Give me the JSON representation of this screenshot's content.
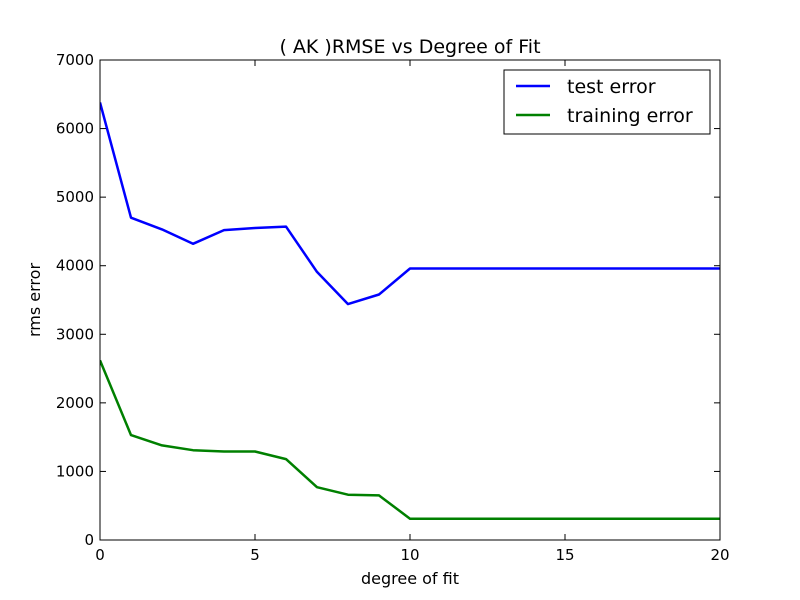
{
  "chart_data": {
    "type": "line",
    "title": "(  AK  )RMSE vs Degree of Fit",
    "xlabel": "degree of fit",
    "ylabel": "rms error",
    "xlim": [
      0,
      20
    ],
    "ylim": [
      0,
      7000
    ],
    "x_ticks": [
      0,
      5,
      10,
      15,
      20
    ],
    "y_ticks": [
      0,
      1000,
      2000,
      3000,
      4000,
      5000,
      6000,
      7000
    ],
    "grid": false,
    "legend_position": "top-right",
    "x": [
      0,
      1,
      2,
      3,
      4,
      5,
      6,
      7,
      8,
      9,
      10,
      11,
      12,
      13,
      14,
      15,
      16,
      17,
      18,
      19,
      20
    ],
    "series": [
      {
        "name": "test error",
        "color": "#0000ff",
        "values": [
          6380,
          4700,
          4530,
          4320,
          4520,
          4550,
          4570,
          3910,
          3440,
          3580,
          3960,
          3960,
          3960,
          3960,
          3960,
          3960,
          3960,
          3960,
          3960,
          3960,
          3960
        ]
      },
      {
        "name": "training error",
        "color": "#008000",
        "values": [
          2620,
          1530,
          1380,
          1310,
          1290,
          1290,
          1180,
          770,
          660,
          650,
          310,
          310,
          310,
          310,
          310,
          310,
          310,
          310,
          310,
          310,
          310
        ]
      }
    ]
  }
}
